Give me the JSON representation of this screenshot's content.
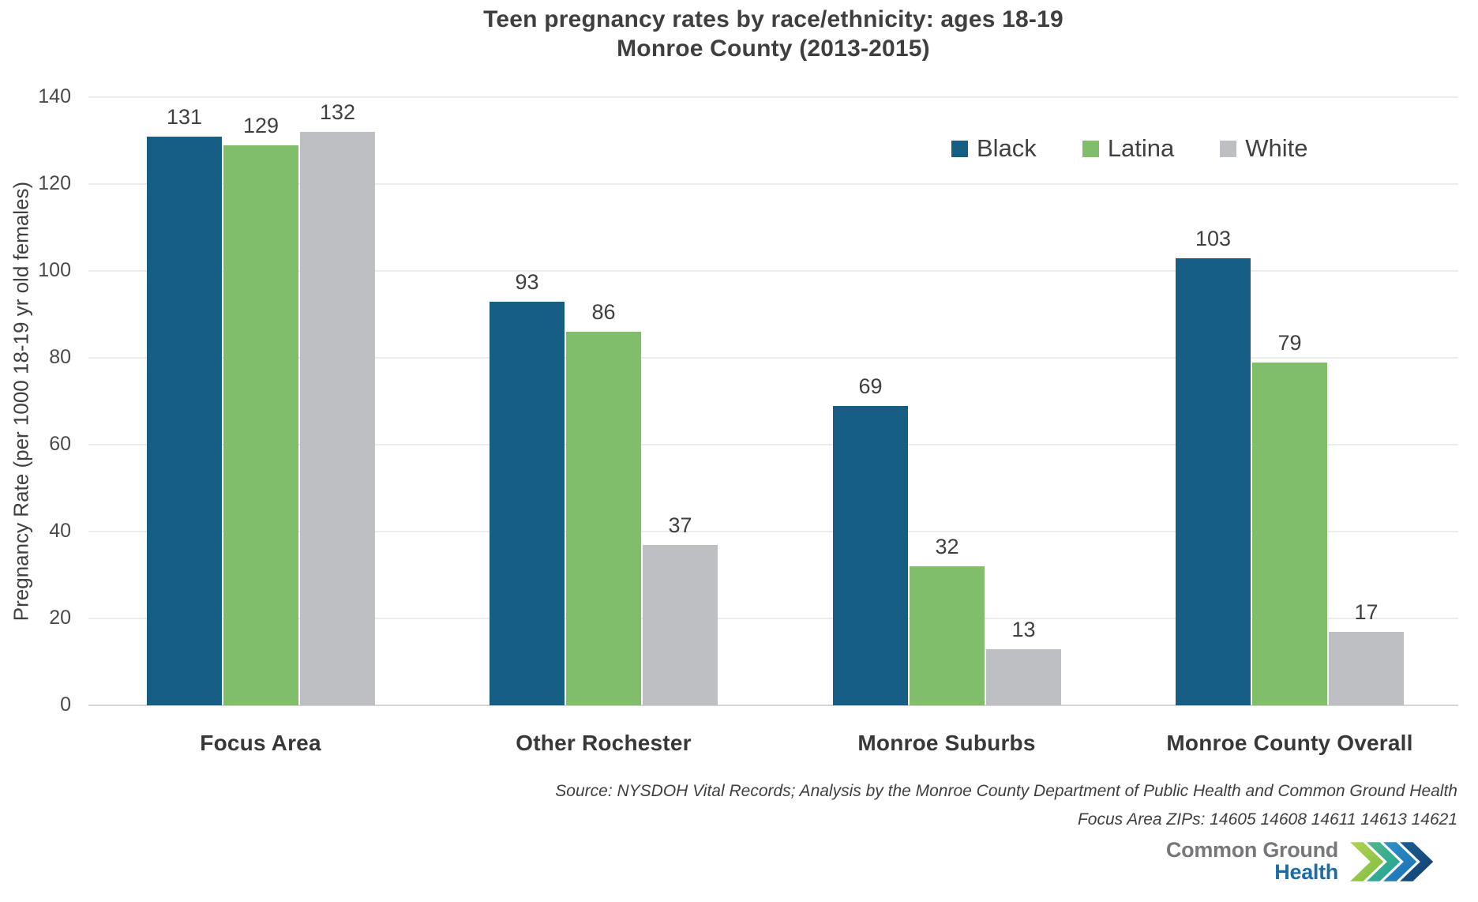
{
  "title": {
    "line1": "Teen pregnancy rates by race/ethnicity: ages 18-19",
    "line2": "Monroe County (2013-2015)"
  },
  "chart_data": {
    "type": "bar",
    "categories": [
      "Focus Area",
      "Other Rochester",
      "Monroe Suburbs",
      "Monroe County Overall"
    ],
    "series": [
      {
        "name": "Black",
        "color": "#175E84",
        "values": [
          131,
          93,
          69,
          103
        ]
      },
      {
        "name": "Latina",
        "color": "#80BE6A",
        "values": [
          129,
          86,
          32,
          79
        ]
      },
      {
        "name": "White",
        "color": "#BEBFC2",
        "values": [
          132,
          37,
          13,
          17
        ]
      }
    ],
    "xlabel": "",
    "ylabel": "Pregnancy Rate (per 1000 18-19 yr old females)",
    "ylim": [
      0,
      140
    ],
    "yticks": [
      0,
      20,
      40,
      60,
      80,
      100,
      120,
      140
    ],
    "grid": true,
    "value_labels": true,
    "legend_position": "top-right"
  },
  "source": {
    "line1": "Source: NYSDOH Vital Records; Analysis by the Monroe County Department of Public Health and Common Ground Health",
    "line2": "Focus Area ZIPs: 14605 14608 14611 14613 14621"
  },
  "logo": {
    "line1": "Common Ground",
    "line2": "Health",
    "text_gray": "#76777A",
    "text_blue": "#1E6CA5",
    "chevron_colors": [
      "#8FC640",
      "#27A899",
      "#1C72B8",
      "#134F7E"
    ]
  },
  "colors": {
    "grid": "#ECECEC",
    "axis": "#D5D5D5",
    "text": "#404040"
  }
}
